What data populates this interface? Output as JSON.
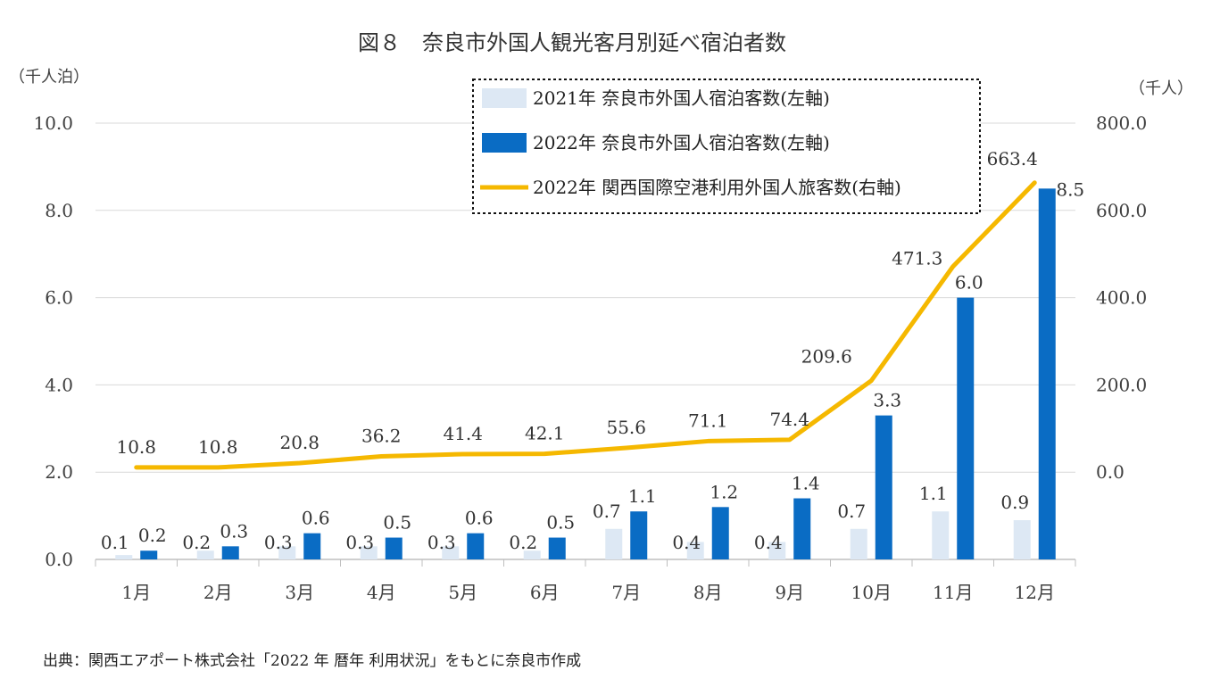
{
  "chart_data": {
    "type": "bar+line",
    "title": "図８　奈良市外国人観光客月別延べ宿泊者数",
    "categories": [
      "1月",
      "2月",
      "3月",
      "4月",
      "5月",
      "6月",
      "7月",
      "8月",
      "9月",
      "10月",
      "11月",
      "12月"
    ],
    "left_axis": {
      "unit": "（千人泊）",
      "ticks": [
        "10.0",
        "8.0",
        "6.0",
        "4.0",
        "2.0",
        "0.0"
      ],
      "min": 0,
      "max": 10
    },
    "right_axis": {
      "unit": "（千人）",
      "ticks": [
        "800.0",
        "600.0",
        "400.0",
        "200.0",
        "0.0"
      ],
      "min": -200,
      "max": 800
    },
    "series": [
      {
        "name": "2021年 奈良市外国人宿泊客数(左軸)",
        "kind": "bar",
        "axis": "left",
        "color": "#dde8f4",
        "values": [
          0.1,
          0.2,
          0.3,
          0.3,
          0.3,
          0.2,
          0.7,
          0.4,
          0.4,
          0.7,
          1.1,
          0.9
        ],
        "labels": [
          "0.1",
          "0.2",
          "0.3",
          "0.3",
          "0.3",
          "0.2",
          "0.7",
          "0.4",
          "0.4",
          "0.7",
          "1.1",
          "0.9"
        ]
      },
      {
        "name": "2022年 奈良市外国人宿泊客数(左軸)",
        "kind": "bar",
        "axis": "left",
        "color": "#0a6cc4",
        "values": [
          0.2,
          0.3,
          0.6,
          0.5,
          0.6,
          0.5,
          1.1,
          1.2,
          1.4,
          3.3,
          6.0,
          8.5
        ],
        "labels": [
          "0.2",
          "0.3",
          "0.6",
          "0.5",
          "0.6",
          "0.5",
          "1.1",
          "1.2",
          "1.4",
          "3.3",
          "6.0",
          "8.5"
        ]
      },
      {
        "name": "2022年 関西国際空港利用外国人旅客数(右軸)",
        "kind": "line",
        "axis": "right",
        "color": "#f5b800",
        "values": [
          10.8,
          10.8,
          20.8,
          36.2,
          41.4,
          42.1,
          55.6,
          71.1,
          74.4,
          209.6,
          471.3,
          663.4
        ],
        "labels": [
          "10.8",
          "10.8",
          "20.8",
          "36.2",
          "41.4",
          "42.1",
          "55.6",
          "71.1",
          "74.4",
          "209.6",
          "471.3",
          "663.4"
        ]
      }
    ],
    "grid": true,
    "legend": "top-right"
  },
  "source": "出典：関西エアポート株式会社「2022 年  暦年  利用状況」をもとに奈良市作成"
}
